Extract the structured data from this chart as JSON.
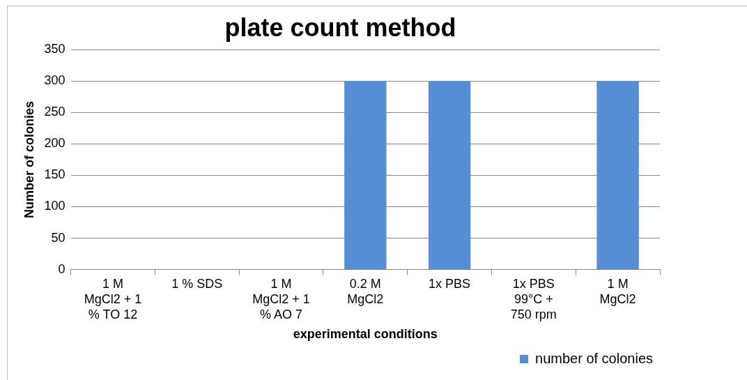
{
  "chart_data": {
    "type": "bar",
    "title": "plate count method",
    "xlabel": "experimental conditions",
    "ylabel": "Number of colonies",
    "categories": [
      "1 M MgCl2 + 1 % TO 12",
      "1 % SDS",
      "1 M MgCl2 + 1 % AO 7",
      "0.2 M MgCl2",
      "1x PBS",
      "1x PBS 99°C + 750 rpm",
      "1 M MgCl2"
    ],
    "series": [
      {
        "name": "number of colonies",
        "color": "#558ed5",
        "values": [
          0,
          0,
          0,
          300,
          300,
          0,
          300
        ]
      }
    ],
    "ylim": [
      0,
      350
    ],
    "yticks": [
      0,
      50,
      100,
      150,
      200,
      250,
      300,
      350
    ],
    "grid": "y",
    "legend": "bottom right"
  }
}
